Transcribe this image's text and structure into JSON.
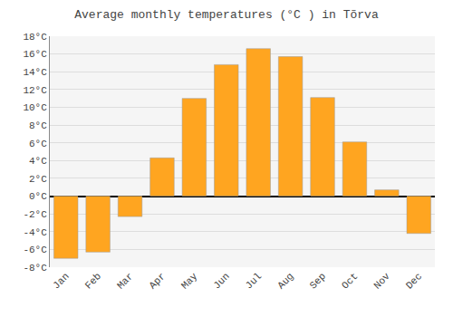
{
  "chart_data": {
    "type": "bar",
    "title": "Average monthly temperatures (°C ) in Tõrva",
    "categories": [
      "Jan",
      "Feb",
      "Mar",
      "Apr",
      "May",
      "Jun",
      "Jul",
      "Aug",
      "Sep",
      "Oct",
      "Nov",
      "Dec"
    ],
    "values": [
      -7.0,
      -6.3,
      -2.3,
      4.3,
      11.0,
      14.8,
      16.6,
      15.7,
      11.1,
      6.1,
      0.7,
      -4.2
    ],
    "color": "#FFA520",
    "ylim": [
      -8,
      18
    ],
    "yticks": [
      {
        "value": -8,
        "label": "-8°C"
      },
      {
        "value": -6,
        "label": "-6°C"
      },
      {
        "value": -4,
        "label": "-4°C"
      },
      {
        "value": -2,
        "label": "-2°C"
      },
      {
        "value": 0,
        "label": "0°C"
      },
      {
        "value": 2,
        "label": "2°C"
      },
      {
        "value": 4,
        "label": "4°C"
      },
      {
        "value": 6,
        "label": "6°C"
      },
      {
        "value": 8,
        "label": "8°C"
      },
      {
        "value": 10,
        "label": "10°C"
      },
      {
        "value": 12,
        "label": "12°C"
      },
      {
        "value": 14,
        "label": "14°C"
      },
      {
        "value": 16,
        "label": "16°C"
      },
      {
        "value": 18,
        "label": "18°C"
      }
    ],
    "grid": true
  }
}
